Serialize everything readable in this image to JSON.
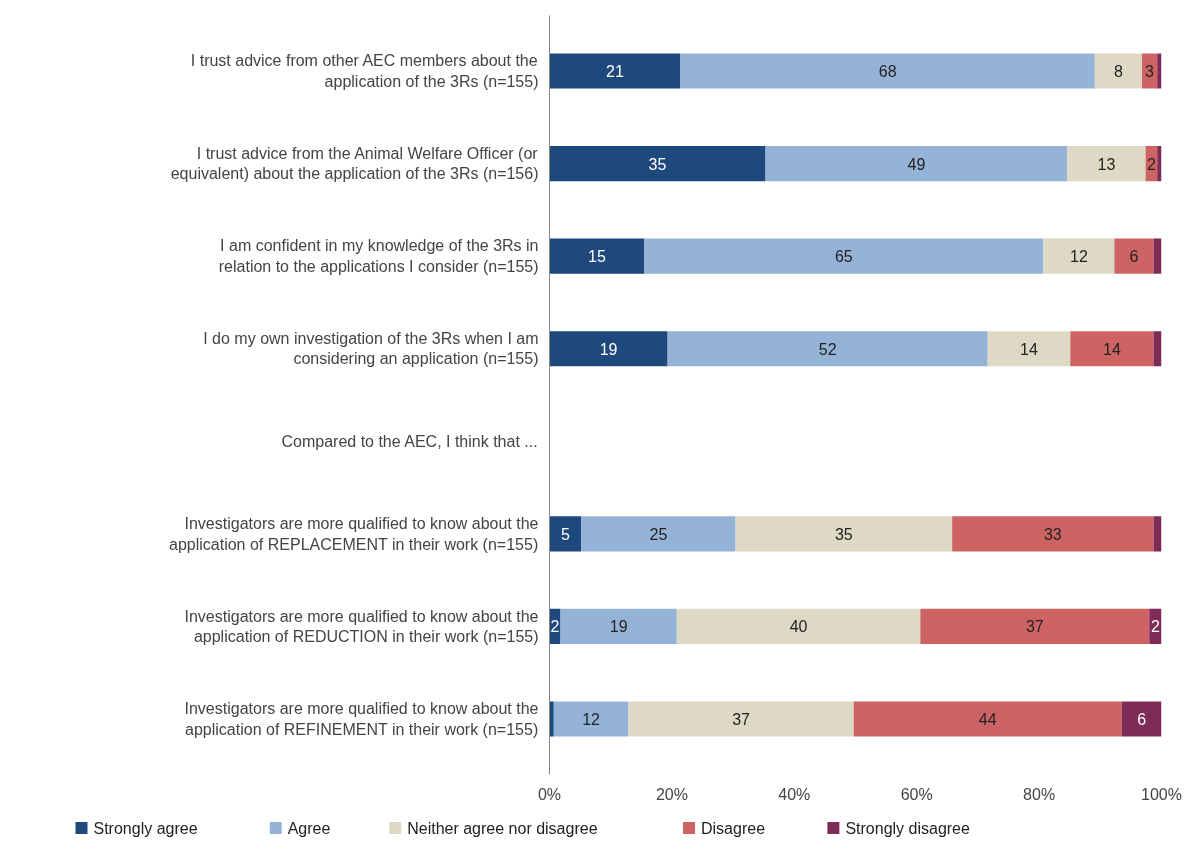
{
  "chart_data": {
    "type": "bar",
    "orientation": "horizontal",
    "stacked": true,
    "categories": [
      "I trust advice from other AEC members about the application of the 3Rs (n=155)",
      "I trust advice from the Animal Welfare Officer (or equivalent) about the application of the 3Rs (n=156)",
      "I am confident in my knowledge of the 3Rs in relation to the applications I consider (n=155)",
      "I do my own investigation of the 3Rs when I am considering an application (n=155)",
      null,
      "Investigators are more qualified to know about the application of REPLACEMENT in their work (n=155)",
      "Investigators are more qualified to know about the application of REDUCTION in their work (n=155)",
      "Investigators are more qualified to know about the application of REFINEMENT in their work (n=155)"
    ],
    "series": [
      {
        "name": "Strongly agree",
        "color": "#1f497d",
        "values": [
          21.4,
          35.3,
          15.5,
          19.3,
          null,
          5.2,
          1.8,
          0.7
        ],
        "value_labels": [
          "21",
          "35",
          "15",
          "19",
          null,
          "5",
          "2",
          null
        ]
      },
      {
        "name": "Agree",
        "color": "#95b3d7",
        "values": [
          67.7,
          49.3,
          65.2,
          52.3,
          null,
          25.2,
          19,
          12.2
        ],
        "value_labels": [
          "68",
          "49",
          "65",
          "52",
          null,
          "25",
          "19",
          "12"
        ]
      },
      {
        "name": "Neither agree nor disagree",
        "color": "#ddd9c4",
        "values": [
          7.7,
          12.8,
          11.6,
          13.5,
          null,
          35.4,
          39.8,
          36.8
        ],
        "value_labels": [
          "8",
          "13",
          "12",
          "14",
          null,
          "35",
          "40",
          "37"
        ]
      },
      {
        "name": "Disagree",
        "color": "#cd6363",
        "values": [
          2.5,
          1.9,
          6.4,
          13.6,
          null,
          32.9,
          37.4,
          43.8
        ],
        "value_labels": [
          "3",
          "2",
          "6",
          "14",
          null,
          "33",
          "37",
          "44"
        ]
      },
      {
        "name": "Strongly disagree",
        "color": "#7f2b58",
        "values": [
          0.7,
          0.7,
          1.3,
          1.3,
          null,
          1.3,
          2,
          6.5
        ],
        "value_labels": [
          null,
          null,
          null,
          null,
          null,
          null,
          "2",
          "6"
        ]
      }
    ],
    "xlim": [
      0,
      100
    ],
    "xticks": [
      {
        "value": 0,
        "label": "0%"
      },
      {
        "value": 20,
        "label": "20%"
      },
      {
        "value": 40,
        "label": "40%"
      },
      {
        "value": 60,
        "label": "60%"
      },
      {
        "value": 80,
        "label": "80%"
      },
      {
        "value": 100,
        "label": "100%"
      }
    ],
    "annotations": [
      "Compared to the AEC, I think that ..."
    ],
    "grid": false,
    "legend": "bottom"
  }
}
